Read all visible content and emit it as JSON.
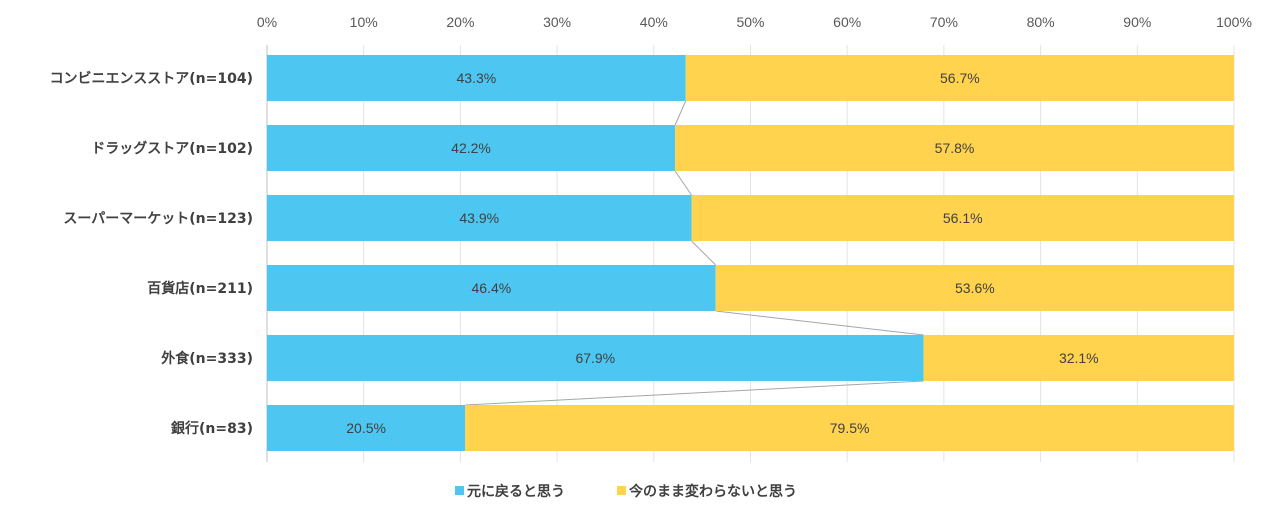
{
  "chart_data": {
    "type": "bar",
    "orientation": "horizontal",
    "stacked": "percent",
    "categories": [
      "コンビニエンスストア(n=104)",
      "ドラッグストア(n=102)",
      "スーパーマーケット(n=123)",
      "百貨店(n=211)",
      "外食(n=333)",
      "銀行(n=83)"
    ],
    "series": [
      {
        "name": "元に戻ると思う",
        "color": "#4DC7F2",
        "values": [
          43.3,
          42.2,
          43.9,
          46.4,
          67.9,
          20.5
        ],
        "labels": [
          "43.3%",
          "42.2%",
          "43.9%",
          "46.4%",
          "67.9%",
          "20.5%"
        ]
      },
      {
        "name": "今のまま変わらないと思う",
        "color": "#FFD34E",
        "values": [
          56.7,
          57.8,
          56.1,
          53.6,
          32.1,
          79.5
        ],
        "labels": [
          "56.7%",
          "57.8%",
          "56.1%",
          "53.6%",
          "32.1%",
          "79.5%"
        ]
      }
    ],
    "xlim": [
      0,
      100
    ],
    "xticks": [
      "0%",
      "10%",
      "20%",
      "30%",
      "40%",
      "50%",
      "60%",
      "70%",
      "80%",
      "90%",
      "100%"
    ],
    "x_axis_position": "top",
    "grid": true,
    "series_lines": true,
    "legend": "bottom"
  }
}
